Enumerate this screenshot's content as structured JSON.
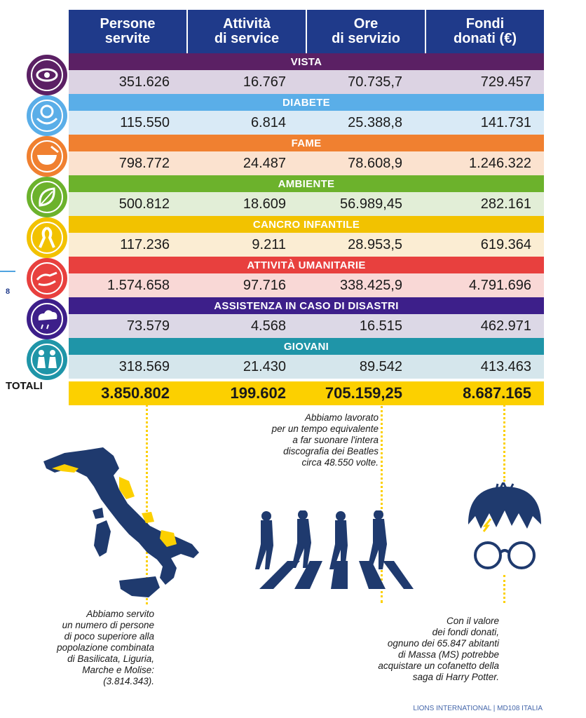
{
  "page_number": "8",
  "headers": [
    "Persone\nservite",
    "Attività\ndi service",
    "Ore\ndi servizio",
    "Fondi\ndonati (€)"
  ],
  "rows": [
    {
      "label": "VISTA",
      "band_color": "#5b2064",
      "row_color": "#dcd3e3",
      "values": [
        "351.626",
        "16.767",
        "70.735,7",
        "729.457"
      ],
      "icon": "eye-icon"
    },
    {
      "label": "DIABETE",
      "band_color": "#5aaee8",
      "row_color": "#d9eaf6",
      "values": [
        "115.550",
        "6.814",
        "25.388,8",
        "141.731"
      ],
      "icon": "diabetes-icon"
    },
    {
      "label": "FAME",
      "band_color": "#f08030",
      "row_color": "#fbe2cf",
      "values": [
        "798.772",
        "24.487",
        "78.608,9",
        "1.246.322"
      ],
      "icon": "bowl-icon"
    },
    {
      "label": "AMBIENTE",
      "band_color": "#6cb22c",
      "row_color": "#e2eed7",
      "values": [
        "500.812",
        "18.609",
        "56.989,45",
        "282.161"
      ],
      "icon": "leaf-icon"
    },
    {
      "label": "CANCRO INFANTILE",
      "band_color": "#f2c200",
      "row_color": "#fbedd3",
      "values": [
        "117.236",
        "9.211",
        "28.953,5",
        "619.364"
      ],
      "icon": "ribbon-icon"
    },
    {
      "label": "ATTIVITÀ UMANITARIE",
      "band_color": "#e8403e",
      "row_color": "#f9d8d6",
      "values": [
        "1.574.658",
        "97.716",
        "338.425,9",
        "4.791.696"
      ],
      "icon": "hands-icon"
    },
    {
      "label": "ASSISTENZA IN CASO DI DISASTRI",
      "band_color": "#3d1f8a",
      "row_color": "#dcd8e6",
      "values": [
        "73.579",
        "4.568",
        "16.515",
        "462.971"
      ],
      "icon": "storm-icon"
    },
    {
      "label": "GIOVANI",
      "band_color": "#1f95a8",
      "row_color": "#d5e6ec",
      "values": [
        "318.569",
        "21.430",
        "89.542",
        "413.463"
      ],
      "icon": "children-icon"
    }
  ],
  "totals": {
    "label": "TOTALI",
    "values": [
      "3.850.802",
      "199.602",
      "705.159,25",
      "8.687.165"
    ]
  },
  "notes": {
    "beatles": "Abbiamo lavorato\nper un tempo equivalente\na far suonare l'intera\ndiscografia dei Beatles\ncirca 48.550 volte.",
    "italy": "Abbiamo servito\nun numero di persone\ndi poco superiore alla\npopolazione combinata\ndi Basilicata, Liguria,\nMarche e Molise:\n(3.814.343).",
    "potter": "Con il valore\ndei fondi donati,\nognuno dei 65.847 abitanti\ndi Massa (MS) potrebbe\nacquistare un cofanetto della\nsaga di Harry Potter."
  },
  "footer": "LIONS INTERNATIONAL | MD108 ITALIA"
}
